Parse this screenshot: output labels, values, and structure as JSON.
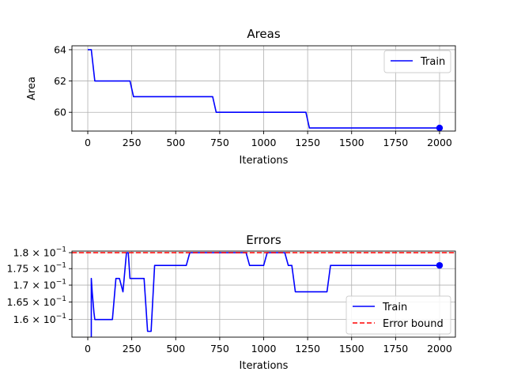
{
  "chart_data": [
    {
      "type": "line",
      "title": "Areas",
      "xlabel": "Iterations",
      "ylabel": "Area",
      "xlim": [
        -90,
        2090
      ],
      "ylim": [
        58.8,
        64.25
      ],
      "x_ticks": [
        0,
        250,
        500,
        750,
        1000,
        1250,
        1500,
        1750,
        2000
      ],
      "x_tick_labels": [
        "0",
        "250",
        "500",
        "750",
        "1000",
        "1250",
        "1500",
        "1750",
        "2000"
      ],
      "y_ticks": [
        60,
        62,
        64
      ],
      "y_tick_labels": [
        "60",
        "62",
        "64"
      ],
      "grid": true,
      "legend_position": "top-right",
      "series": [
        {
          "name": "Train",
          "color": "#0000ff",
          "x": [
            0,
            20,
            40,
            240,
            260,
            710,
            730,
            1240,
            1260,
            2000
          ],
          "values": [
            64,
            64,
            62,
            62,
            61,
            61,
            60,
            60,
            59,
            59
          ],
          "end_marker": true
        }
      ]
    },
    {
      "type": "line",
      "title": "Errors",
      "xlabel": "Iterations",
      "ylabel": "",
      "xlim": [
        -90,
        2090
      ],
      "ylim": [
        0.1551,
        0.1805
      ],
      "y_scale": "log",
      "x_ticks": [
        0,
        250,
        500,
        750,
        1000,
        1250,
        1500,
        1750,
        2000
      ],
      "x_tick_labels": [
        "0",
        "250",
        "500",
        "750",
        "1000",
        "1250",
        "1500",
        "1750",
        "2000"
      ],
      "y_ticks": [
        0.16,
        0.165,
        0.17,
        0.175,
        0.18
      ],
      "y_tick_labels": [
        {
          "mant": "1.6",
          "exp": "−1"
        },
        {
          "mant": "1.65",
          "exp": "−1"
        },
        {
          "mant": "1.7",
          "exp": "−1"
        },
        {
          "mant": "1.75",
          "exp": "−1"
        },
        {
          "mant": "1.8",
          "exp": "−1"
        }
      ],
      "grid": true,
      "legend_position": "lower-right",
      "series": [
        {
          "name": "Train",
          "color": "#0000ff",
          "style": "solid",
          "x": [
            20,
            20,
            25,
            35,
            40,
            140,
            160,
            180,
            200,
            220,
            230,
            240,
            260,
            320,
            340,
            360,
            380,
            560,
            580,
            900,
            920,
            1000,
            1020,
            1120,
            1140,
            1160,
            1180,
            1360,
            1380,
            2000
          ],
          "values": [
            0.1551,
            0.172,
            0.168,
            0.162,
            0.16,
            0.16,
            0.172,
            0.172,
            0.168,
            0.18,
            0.18,
            0.172,
            0.172,
            0.172,
            0.1567,
            0.1567,
            0.176,
            0.176,
            0.18,
            0.18,
            0.176,
            0.176,
            0.18,
            0.18,
            0.176,
            0.176,
            0.168,
            0.168,
            0.176,
            0.176
          ],
          "end_marker": true
        },
        {
          "name": "Error bound",
          "color": "#ff0000",
          "style": "dashed",
          "x": [
            -90,
            2090
          ],
          "values": [
            0.18,
            0.18
          ]
        }
      ]
    }
  ]
}
